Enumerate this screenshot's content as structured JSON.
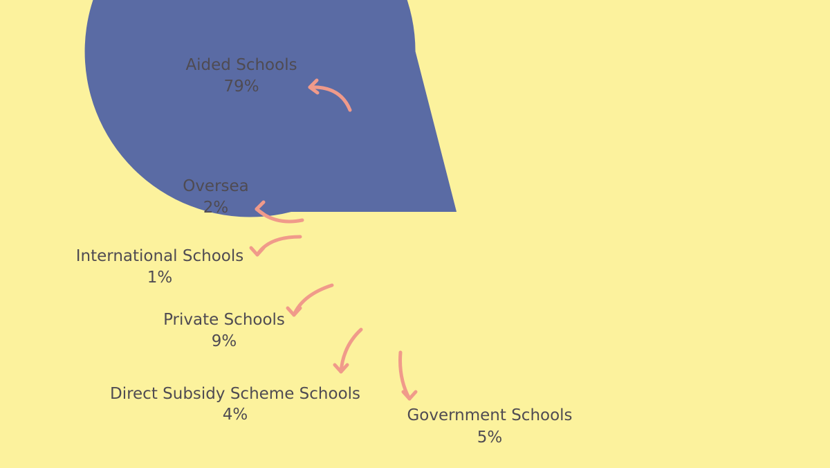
{
  "colors": {
    "background": "#fcf29d",
    "arrow": "#f09a8a",
    "text": "#4f4b52"
  },
  "chart_data": {
    "type": "pie",
    "start_angle_deg": 180,
    "direction": "counterclockwise",
    "slices": [
      {
        "label": "Oversea",
        "value_label": "2%",
        "value": 2,
        "color": "#d6c6db"
      },
      {
        "label": "International Schools",
        "value_label": "1%",
        "value": 1,
        "color": "#fde7f4"
      },
      {
        "label": "Private Schools",
        "value_label": "9%",
        "value": 9,
        "color": "#dcc4e2"
      },
      {
        "label": "Direct Subsidy Scheme Schools",
        "value_label": "4%",
        "value": 4,
        "color": "#b4a4cd"
      },
      {
        "label": "Government Schools",
        "value_label": "5%",
        "value": 5,
        "color": "#8b86b9"
      },
      {
        "label": "Aided Schools",
        "value_label": "79%",
        "value": 79,
        "color": "#5a6ba4"
      }
    ]
  }
}
